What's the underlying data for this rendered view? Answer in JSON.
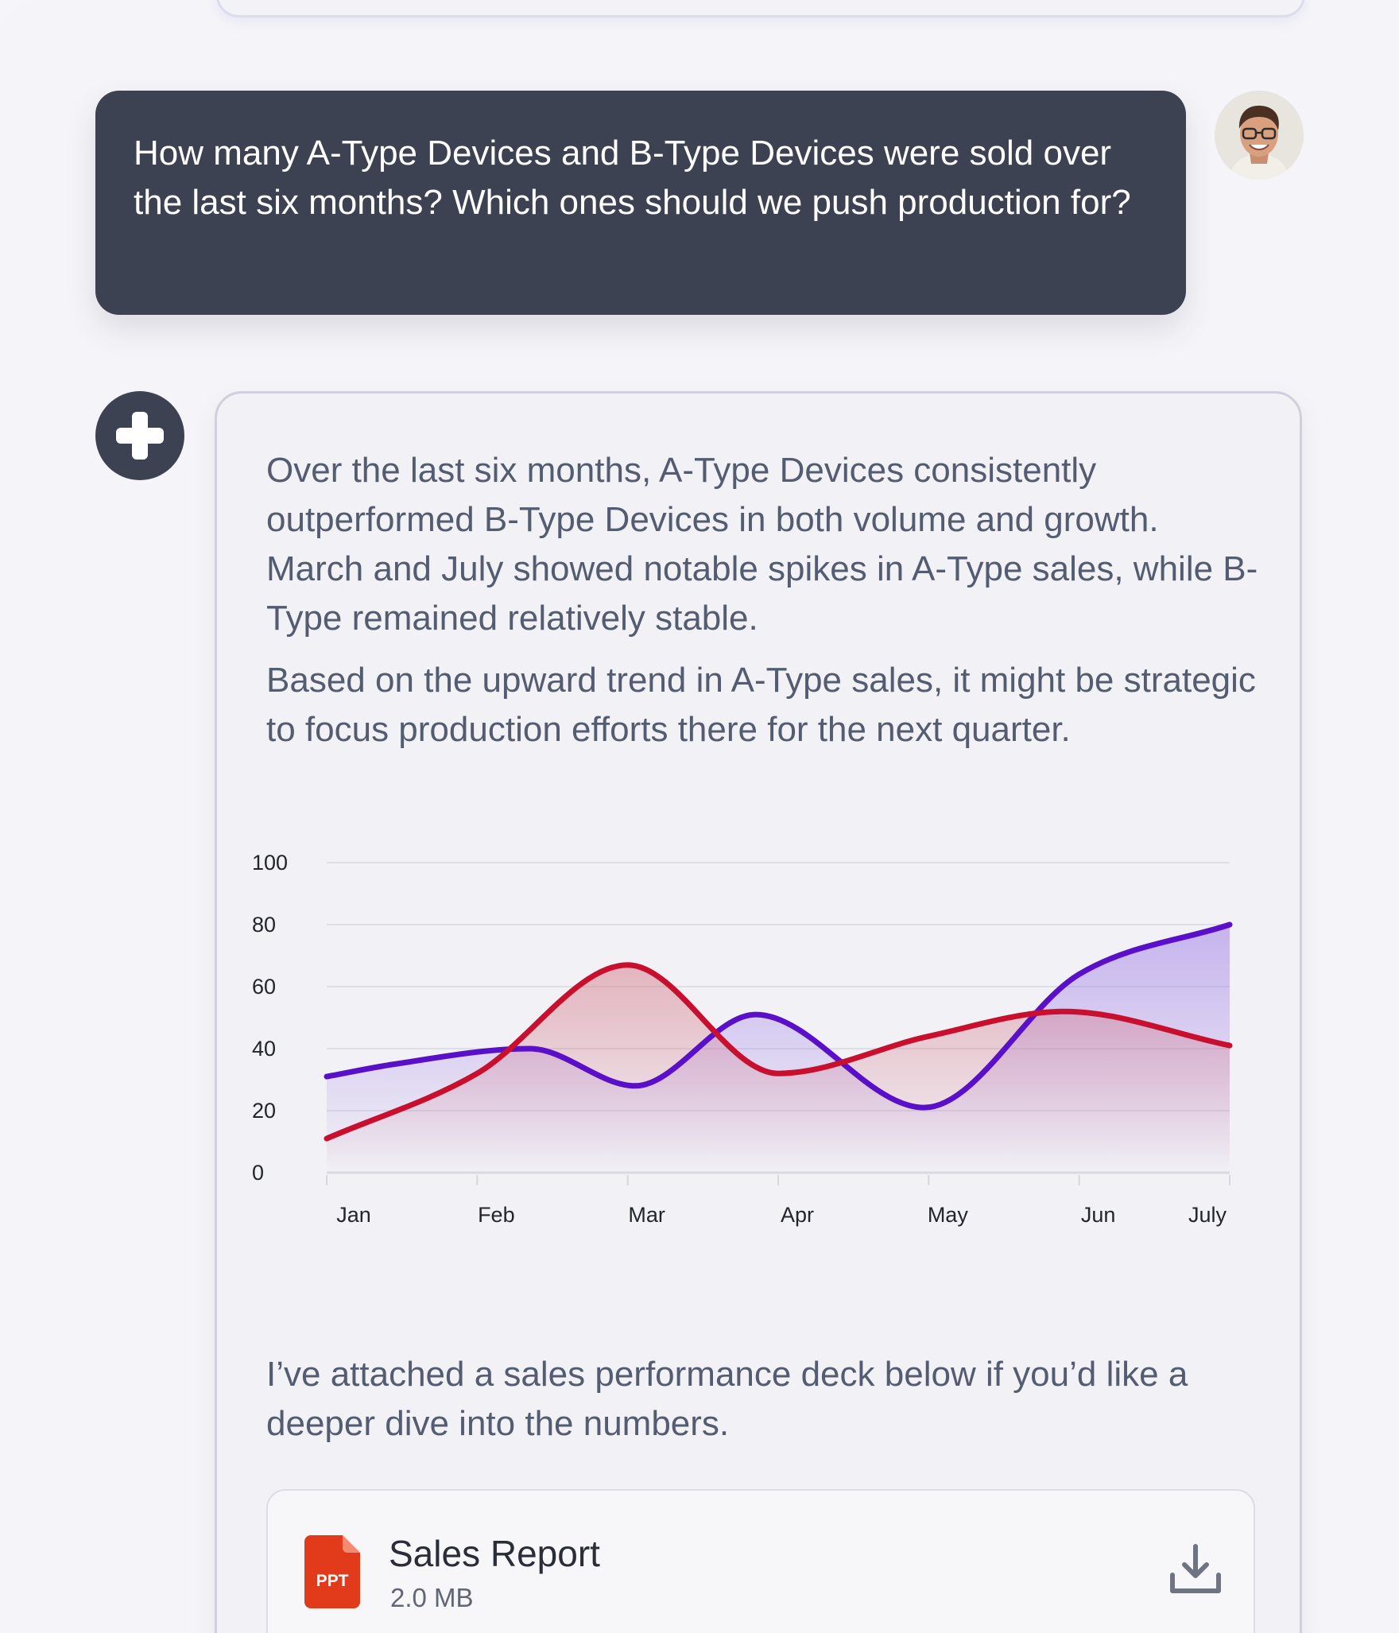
{
  "user_message": {
    "text": "How many A-Type Devices and B-Type Devices were sold over the last six months? Which ones should we push production for?",
    "avatar_icon": "user-avatar"
  },
  "assistant": {
    "icon": "plus-icon",
    "paragraphs": [
      "Over the last six months, A-Type Devices consistently outperformed B-Type Devices in both volume and growth. March and July showed notable spikes in A-Type sales, while B-Type remained relatively stable.",
      "Based on the upward trend in A-Type sales, it might be strategic to focus production efforts there for the next quarter.",
      "I’ve attached a sales performance deck below if you’d like a deeper dive into the numbers."
    ],
    "attachment": {
      "title": "Sales Report",
      "size": "2.0 MB",
      "badge": "PPT",
      "icon": "download-icon"
    }
  },
  "chart_data": {
    "type": "area",
    "categories": [
      "Jan",
      "Feb",
      "Mar",
      "Apr",
      "May",
      "Jun",
      "July"
    ],
    "yticks": [
      "0",
      "20",
      "40",
      "60",
      "80",
      "100"
    ],
    "ylim": [
      0,
      100
    ],
    "grid": true,
    "series": [
      {
        "color": "#5a0fc8",
        "fill": "#8a5ee0",
        "x": [
          0,
          0.45,
          1.35,
          2.05,
          2.85,
          3.97,
          5.0,
          6.0
        ],
        "values": [
          31,
          35,
          40,
          28,
          51,
          21,
          64,
          80
        ]
      },
      {
        "color": "#c8102e",
        "fill": "#d06070",
        "x": [
          0,
          1.0,
          2.0,
          3.0,
          4.0,
          4.9,
          6.0
        ],
        "values": [
          11,
          32,
          67,
          32,
          44,
          52,
          41
        ]
      }
    ]
  }
}
